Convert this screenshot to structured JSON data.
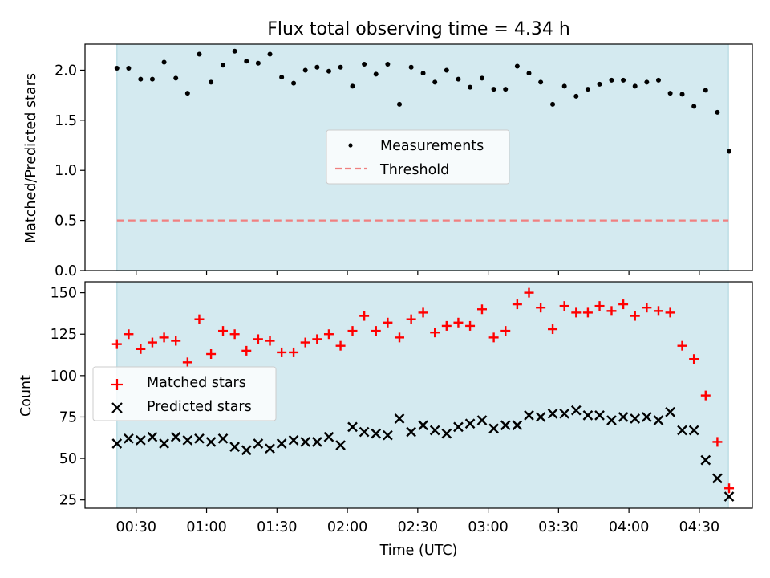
{
  "chart_data": {
    "title": "Flux total observing time = 4.34 h",
    "x_axis": {
      "label": "Time (UTC)",
      "tick_labels": [
        "00:30",
        "01:00",
        "01:30",
        "02:00",
        "02:30",
        "03:00",
        "03:30",
        "04:00",
        "04:30"
      ],
      "tick_minutes": [
        30,
        60,
        90,
        120,
        150,
        180,
        210,
        240,
        270
      ],
      "range_minutes": [
        8.2,
        292.6
      ]
    },
    "observing_window_minutes": [
      21.8,
      282.4
    ],
    "colors": {
      "window": "#d4eaf0",
      "window_edge": "#a8d2dc",
      "measurements": "#000000",
      "threshold": "#f08080",
      "matched": "#ff0000",
      "predicted": "#000000"
    },
    "top": {
      "type": "scatter",
      "ylabel": "Matched/Predicted stars",
      "ylim": [
        0,
        2.26
      ],
      "yticks": [
        0.0,
        0.5,
        1.0,
        1.5,
        2.0
      ],
      "ytick_labels": [
        "0.0",
        "0.5",
        "1.0",
        "1.5",
        "2.0"
      ],
      "legend": [
        "Measurements",
        "Threshold"
      ],
      "legend_position": "center",
      "threshold": 0.5,
      "series": [
        {
          "name": "Measurements",
          "x": [
            21.8,
            26.8,
            31.9,
            36.9,
            41.9,
            46.9,
            51.9,
            56.9,
            61.9,
            67.0,
            72.0,
            77.0,
            82.0,
            87.0,
            92.0,
            97.1,
            102.1,
            107.1,
            112.1,
            117.1,
            122.2,
            127.2,
            132.2,
            137.2,
            142.2,
            147.2,
            152.3,
            157.3,
            162.3,
            167.3,
            172.3,
            177.4,
            182.4,
            187.4,
            192.4,
            197.4,
            202.4,
            207.5,
            212.5,
            217.5,
            222.5,
            227.5,
            232.6,
            237.6,
            242.6,
            247.6,
            252.6,
            257.6,
            262.7,
            267.7,
            272.7,
            277.7,
            282.7
          ],
          "y": [
            2.02,
            2.02,
            1.91,
            1.91,
            2.08,
            1.92,
            1.77,
            2.16,
            1.88,
            2.05,
            2.19,
            2.09,
            2.07,
            2.16,
            1.93,
            1.87,
            2.0,
            2.03,
            1.99,
            2.03,
            1.84,
            2.06,
            1.96,
            2.06,
            1.66,
            2.03,
            1.97,
            1.88,
            2.0,
            1.91,
            1.83,
            1.92,
            1.81,
            1.81,
            2.04,
            1.97,
            1.88,
            1.66,
            1.84,
            1.74,
            1.81,
            1.86,
            1.9,
            1.9,
            1.84,
            1.88,
            1.9,
            1.77,
            1.76,
            1.64,
            1.8,
            1.58,
            1.19
          ]
        }
      ]
    },
    "bottom": {
      "type": "scatter",
      "ylabel": "Count",
      "ylim": [
        20,
        156.6
      ],
      "yticks": [
        25,
        50,
        75,
        100,
        125,
        150
      ],
      "ytick_labels": [
        "25",
        "50",
        "75",
        "100",
        "125",
        "150"
      ],
      "legend": [
        "Matched stars",
        "Predicted stars"
      ],
      "legend_position": "center-left",
      "series": [
        {
          "name": "Matched stars",
          "x": [
            21.8,
            26.8,
            31.9,
            36.9,
            41.9,
            46.9,
            51.9,
            56.9,
            61.9,
            67.0,
            72.0,
            77.0,
            82.0,
            87.0,
            92.0,
            97.1,
            102.1,
            107.1,
            112.1,
            117.1,
            122.2,
            127.2,
            132.2,
            137.2,
            142.2,
            147.2,
            152.3,
            157.3,
            162.3,
            167.3,
            172.3,
            177.4,
            182.4,
            187.4,
            192.4,
            197.4,
            202.4,
            207.5,
            212.5,
            217.5,
            222.5,
            227.5,
            232.6,
            237.6,
            242.6,
            247.6,
            252.6,
            257.6,
            262.7,
            267.7,
            272.7,
            277.7,
            282.7
          ],
          "y": [
            119,
            125,
            116,
            120,
            123,
            121,
            108,
            134,
            113,
            127,
            125,
            115,
            122,
            121,
            114,
            114,
            120,
            122,
            125,
            118,
            127,
            136,
            127,
            132,
            123,
            134,
            138,
            126,
            130,
            132,
            130,
            140,
            123,
            127,
            143,
            150,
            141,
            128,
            142,
            138,
            138,
            142,
            139,
            143,
            136,
            141,
            139,
            138,
            118,
            110,
            88,
            60,
            32
          ]
        },
        {
          "name": "Predicted stars",
          "x": [
            21.8,
            26.8,
            31.9,
            36.9,
            41.9,
            46.9,
            51.9,
            56.9,
            61.9,
            67.0,
            72.0,
            77.0,
            82.0,
            87.0,
            92.0,
            97.1,
            102.1,
            107.1,
            112.1,
            117.1,
            122.2,
            127.2,
            132.2,
            137.2,
            142.2,
            147.2,
            152.3,
            157.3,
            162.3,
            167.3,
            172.3,
            177.4,
            182.4,
            187.4,
            192.4,
            197.4,
            202.4,
            207.5,
            212.5,
            217.5,
            222.5,
            227.5,
            232.6,
            237.6,
            242.6,
            247.6,
            252.6,
            257.6,
            262.7,
            267.7,
            272.7,
            277.7,
            282.7
          ],
          "y": [
            59,
            62,
            61,
            63,
            59,
            63,
            61,
            62,
            60,
            62,
            57,
            55,
            59,
            56,
            59,
            61,
            60,
            60,
            63,
            58,
            69,
            66,
            65,
            64,
            74,
            66,
            70,
            67,
            65,
            69,
            71,
            73,
            68,
            70,
            70,
            76,
            75,
            77,
            77,
            79,
            76,
            76,
            73,
            75,
            74,
            75,
            73,
            78,
            67,
            67,
            49,
            38,
            27
          ]
        }
      ]
    }
  }
}
